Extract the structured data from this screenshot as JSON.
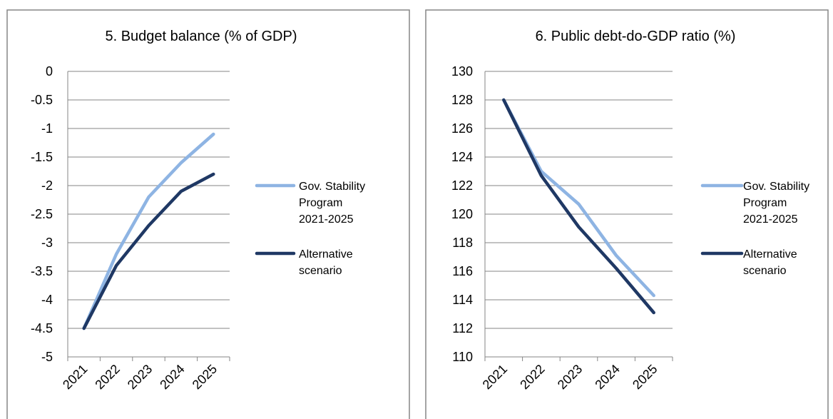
{
  "chart_data": [
    {
      "type": "line",
      "title": "5. Budget balance (% of GDP)",
      "xlabel": "",
      "ylabel": "",
      "categories": [
        "2021",
        "2022",
        "2023",
        "2024",
        "2025"
      ],
      "yticks": [
        "0",
        "-0.5",
        "-1",
        "-1.5",
        "-2",
        "-2.5",
        "-3",
        "-3.5",
        "-4",
        "-4.5",
        "-5"
      ],
      "ylim": [
        -5,
        0
      ],
      "grid": true,
      "legend_position": "right",
      "series": [
        {
          "name": "Gov. Stability Program 2021-2025",
          "legend_lines": [
            "Gov. Stability",
            "Program",
            "2021-2025"
          ],
          "color": "#8EB4E3",
          "values": [
            -4.5,
            -3.2,
            -2.2,
            -1.6,
            -1.1
          ]
        },
        {
          "name": "Alternative scenario",
          "legend_lines": [
            "Alternative",
            "scenario"
          ],
          "color": "#1F3864",
          "values": [
            -4.5,
            -3.4,
            -2.7,
            -2.1,
            -1.8
          ]
        }
      ]
    },
    {
      "type": "line",
      "title": "6. Public debt-do-GDP ratio (%)",
      "xlabel": "",
      "ylabel": "",
      "categories": [
        "2021",
        "2022",
        "2023",
        "2024",
        "2025"
      ],
      "yticks": [
        "130",
        "128",
        "126",
        "124",
        "122",
        "120",
        "118",
        "116",
        "114",
        "112",
        "110"
      ],
      "ylim": [
        110,
        130
      ],
      "grid": true,
      "legend_position": "right",
      "series": [
        {
          "name": "Gov. Stability Program 2021-2025",
          "legend_lines": [
            "Gov. Stability",
            "Program",
            "2021-2025"
          ],
          "color": "#8EB4E3",
          "values": [
            128.0,
            123.0,
            120.7,
            117.1,
            114.3
          ]
        },
        {
          "name": "Alternative scenario",
          "legend_lines": [
            "Alternative",
            "scenario"
          ],
          "color": "#1F3864",
          "values": [
            128.0,
            122.7,
            119.1,
            116.2,
            113.1
          ]
        }
      ]
    }
  ]
}
